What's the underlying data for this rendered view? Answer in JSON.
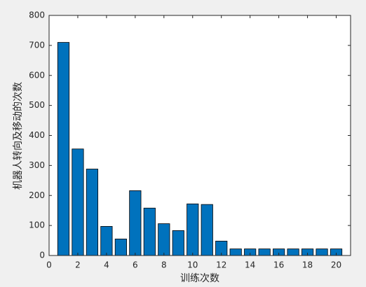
{
  "chart_data": {
    "type": "bar",
    "x_label": "训练次数",
    "y_label": "机器人转向及移动的次数",
    "x": [
      1,
      2,
      3,
      4,
      5,
      6,
      7,
      8,
      9,
      10,
      11,
      12,
      13,
      14,
      15,
      16,
      17,
      18,
      19,
      20
    ],
    "values": [
      710,
      355,
      288,
      97,
      55,
      216,
      158,
      106,
      83,
      172,
      170,
      48,
      22,
      22,
      22,
      22,
      22,
      22,
      22,
      22
    ],
    "color": "#0072bd",
    "xlim": [
      0,
      21
    ],
    "xticks": [
      0,
      2,
      4,
      6,
      8,
      10,
      12,
      14,
      16,
      18,
      20
    ],
    "ylim": [
      0,
      800
    ],
    "yticks": [
      0,
      100,
      200,
      300,
      400,
      500,
      600,
      700,
      800
    ]
  }
}
